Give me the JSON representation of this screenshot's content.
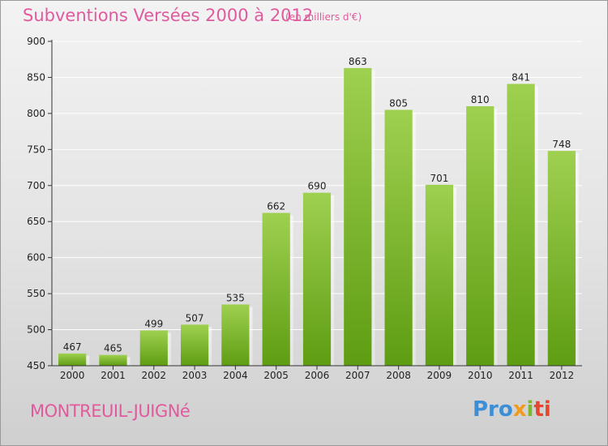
{
  "header": {
    "title": "Subventions Versées 2000 à 2012",
    "unit": "(en milliers d'€)"
  },
  "footer": {
    "place": "MONTREUIL-JUIGNé",
    "logo_parts": [
      "Pro",
      "x",
      "i",
      "ti"
    ]
  },
  "colors": {
    "bar_top": "#9fd050",
    "bar_bottom": "#5e9d12",
    "title": "#e05a9d",
    "axis": "#333333",
    "grid": "#ffffff"
  },
  "chart_data": {
    "type": "bar",
    "categories": [
      "2000",
      "2001",
      "2002",
      "2003",
      "2004",
      "2005",
      "2006",
      "2007",
      "2008",
      "2009",
      "2010",
      "2011",
      "2012"
    ],
    "values": [
      467,
      465,
      499,
      507,
      535,
      662,
      690,
      863,
      805,
      701,
      810,
      841,
      748
    ],
    "ylim": [
      450,
      900
    ],
    "yticks": [
      450,
      500,
      550,
      600,
      650,
      700,
      750,
      800,
      850,
      900
    ],
    "grid": true
  }
}
